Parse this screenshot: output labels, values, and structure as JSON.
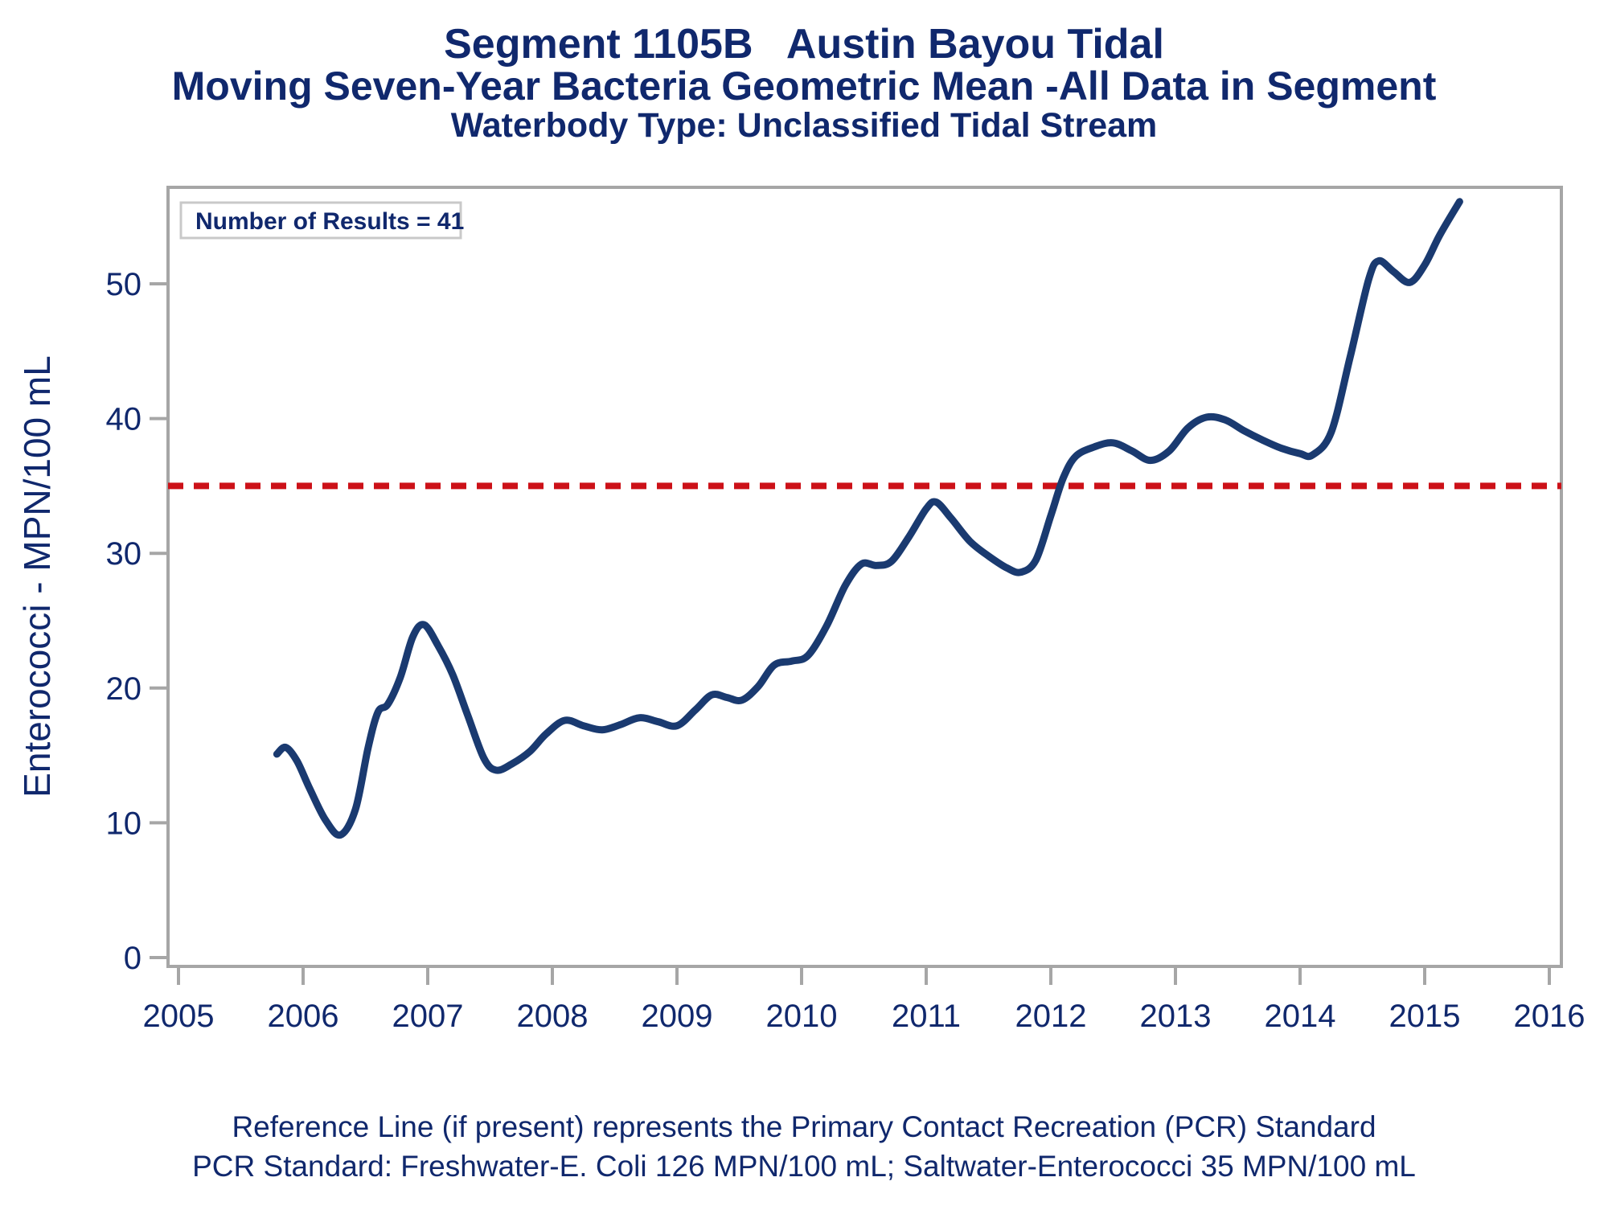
{
  "titles": {
    "line1": "Segment 1105B   Austin Bayou Tidal",
    "line2": "Moving Seven-Year Bacteria Geometric Mean -All Data in Segment",
    "line3": "Waterbody Type: Unclassified Tidal Stream"
  },
  "inset": {
    "label": "Number of Results = 41"
  },
  "footnotes": {
    "line1": "Reference Line (if present) represents the Primary Contact Recreation (PCR) Standard",
    "line2": "PCR Standard: Freshwater-E. Coli 126 MPN/100 mL; Saltwater-Enterococci 35 MPN/100 mL"
  },
  "colors": {
    "navy_text": "#10286d",
    "series_line": "#1a3a70",
    "reference_line": "#cc1118",
    "axis_gray": "#a6a6a6",
    "inset_border": "#c9c9c9",
    "background": "#ffffff"
  },
  "chart_data": {
    "type": "line",
    "title": "Segment 1105B   Austin Bayou Tidal",
    "subtitle": "Moving Seven-Year Bacteria Geometric Mean -All Data in Segment",
    "subtitle2": "Waterbody Type: Unclassified Tidal Stream",
    "xlabel": "",
    "ylabel": "Enterococci - MPN/100 mL",
    "x_ticks": [
      2005,
      2006,
      2007,
      2008,
      2009,
      2010,
      2011,
      2012,
      2013,
      2014,
      2015,
      2016
    ],
    "y_ticks": [
      0,
      10,
      20,
      30,
      40,
      50
    ],
    "xlim": [
      2005,
      2016.1
    ],
    "ylim": [
      -0.7,
      57.8
    ],
    "grid": false,
    "legend": "none",
    "number_of_results": 41,
    "reference_line": {
      "y": 35,
      "style": "dashed",
      "meaning": "Primary Contact Recreation (PCR) Standard, Saltwater-Enterococci 35 MPN/100 mL"
    },
    "series": [
      {
        "name": "Moving Seven-Year Bacteria Geometric Mean",
        "points": [
          [
            2005.79,
            15.1
          ],
          [
            2005.86,
            15.6
          ],
          [
            2005.95,
            14.6
          ],
          [
            2006.05,
            12.6
          ],
          [
            2006.18,
            10.2
          ],
          [
            2006.3,
            9.1
          ],
          [
            2006.42,
            11.0
          ],
          [
            2006.52,
            15.5
          ],
          [
            2006.6,
            18.2
          ],
          [
            2006.68,
            18.8
          ],
          [
            2006.78,
            20.8
          ],
          [
            2006.88,
            23.8
          ],
          [
            2006.97,
            24.7
          ],
          [
            2007.08,
            23.2
          ],
          [
            2007.2,
            21.0
          ],
          [
            2007.32,
            18.0
          ],
          [
            2007.45,
            14.8
          ],
          [
            2007.55,
            13.9
          ],
          [
            2007.68,
            14.4
          ],
          [
            2007.82,
            15.3
          ],
          [
            2007.95,
            16.6
          ],
          [
            2008.1,
            17.6
          ],
          [
            2008.25,
            17.2
          ],
          [
            2008.4,
            16.9
          ],
          [
            2008.55,
            17.3
          ],
          [
            2008.7,
            17.8
          ],
          [
            2008.85,
            17.5
          ],
          [
            2009.0,
            17.2
          ],
          [
            2009.15,
            18.4
          ],
          [
            2009.28,
            19.5
          ],
          [
            2009.4,
            19.3
          ],
          [
            2009.52,
            19.1
          ],
          [
            2009.65,
            20.1
          ],
          [
            2009.78,
            21.7
          ],
          [
            2009.92,
            22.0
          ],
          [
            2010.05,
            22.4
          ],
          [
            2010.2,
            24.6
          ],
          [
            2010.35,
            27.6
          ],
          [
            2010.48,
            29.2
          ],
          [
            2010.6,
            29.1
          ],
          [
            2010.72,
            29.4
          ],
          [
            2010.86,
            31.2
          ],
          [
            2011.0,
            33.3
          ],
          [
            2011.08,
            33.8
          ],
          [
            2011.2,
            32.6
          ],
          [
            2011.35,
            30.9
          ],
          [
            2011.5,
            29.8
          ],
          [
            2011.65,
            28.9
          ],
          [
            2011.76,
            28.6
          ],
          [
            2011.88,
            29.5
          ],
          [
            2012.0,
            32.8
          ],
          [
            2012.1,
            35.6
          ],
          [
            2012.2,
            37.2
          ],
          [
            2012.35,
            37.9
          ],
          [
            2012.5,
            38.2
          ],
          [
            2012.65,
            37.6
          ],
          [
            2012.8,
            36.9
          ],
          [
            2012.95,
            37.6
          ],
          [
            2013.1,
            39.3
          ],
          [
            2013.25,
            40.1
          ],
          [
            2013.4,
            39.9
          ],
          [
            2013.55,
            39.1
          ],
          [
            2013.7,
            38.4
          ],
          [
            2013.85,
            37.8
          ],
          [
            2014.0,
            37.4
          ],
          [
            2014.1,
            37.3
          ],
          [
            2014.25,
            39.0
          ],
          [
            2014.4,
            44.5
          ],
          [
            2014.55,
            50.3
          ],
          [
            2014.63,
            51.7
          ],
          [
            2014.75,
            50.9
          ],
          [
            2014.88,
            50.1
          ],
          [
            2015.0,
            51.4
          ],
          [
            2015.12,
            53.6
          ],
          [
            2015.28,
            56.1
          ]
        ]
      }
    ]
  }
}
